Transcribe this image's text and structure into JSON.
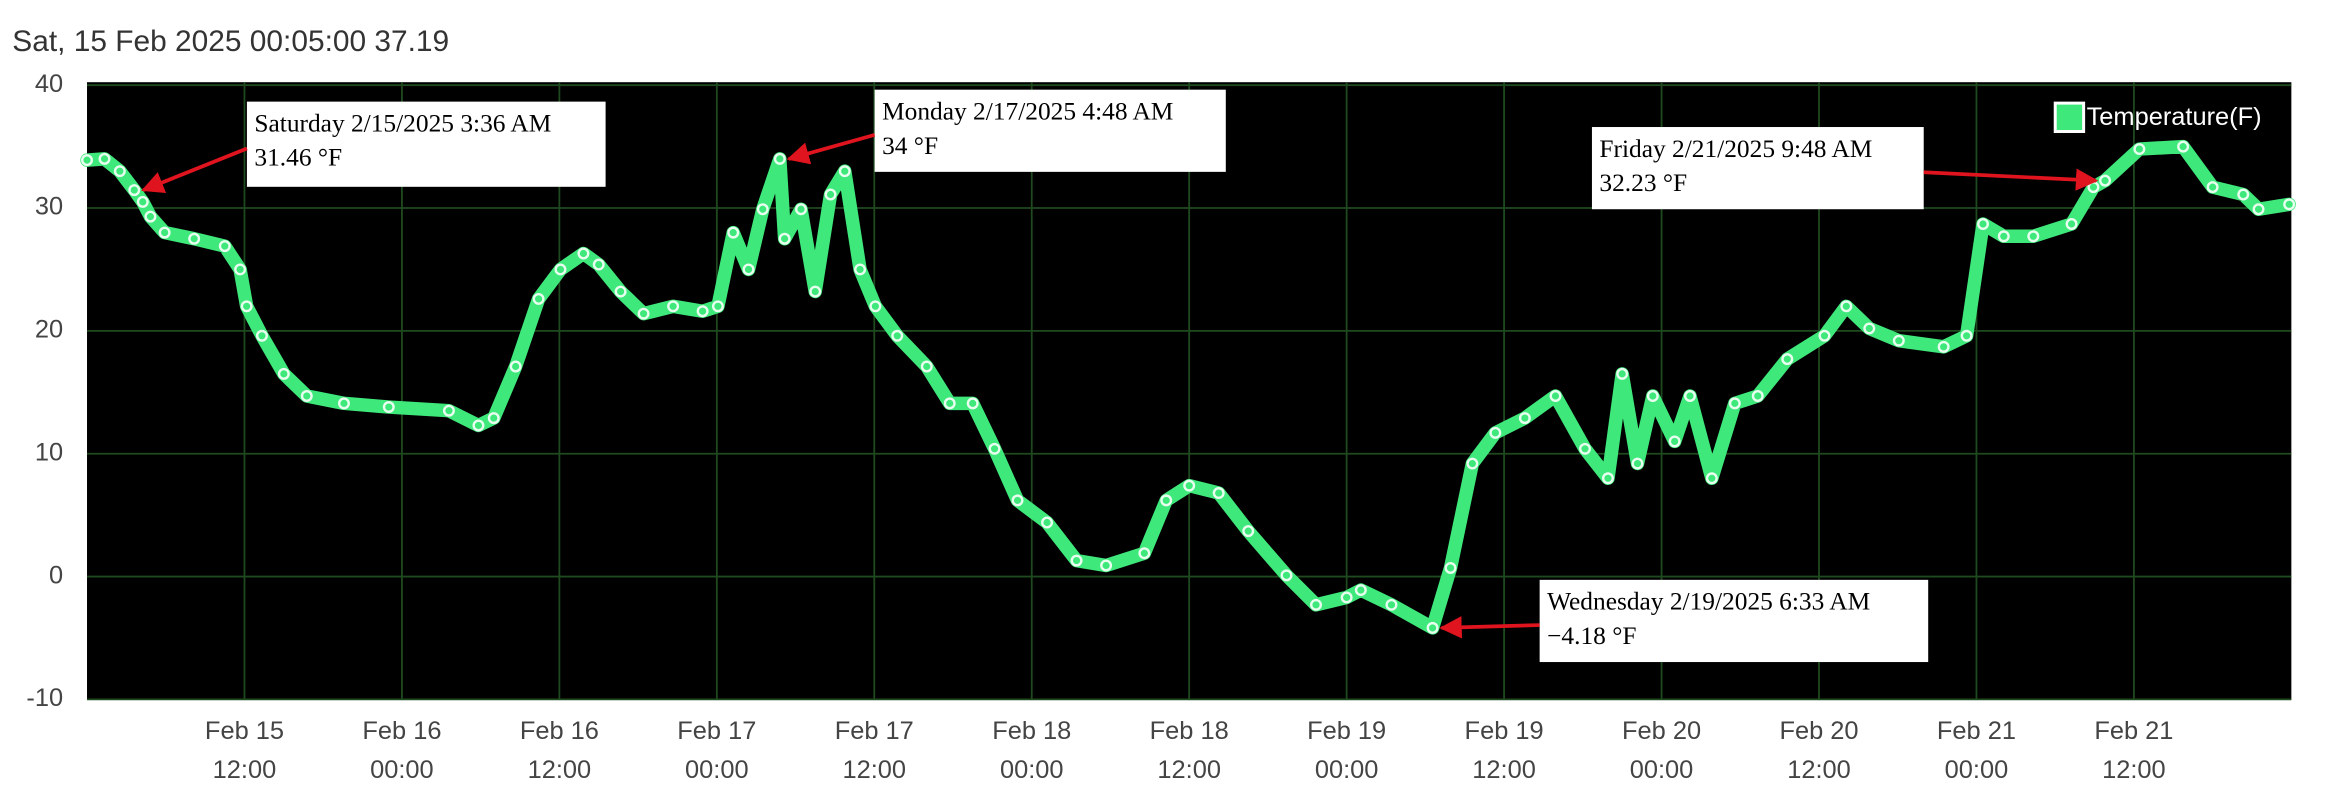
{
  "chart_data": {
    "type": "line",
    "title": "Sat, 15 Feb 2025 00:05:00 37.19",
    "x": [
      "Feb 15 00:00",
      "Feb 15 01:20",
      "Feb 15 02:30",
      "Feb 15 03:36",
      "Feb 15 04:15",
      "Feb 15 04:50",
      "Feb 15 05:55",
      "Feb 15 08:10",
      "Feb 15 10:30",
      "Feb 15 11:40",
      "Feb 15 12:10",
      "Feb 15 13:20",
      "Feb 15 15:00",
      "Feb 15 16:45",
      "Feb 15 19:35",
      "Feb 15 23:00",
      "Feb 16 03:35",
      "Feb 16 05:50",
      "Feb 16 07:00",
      "Feb 16 08:40",
      "Feb 16 10:25",
      "Feb 16 12:05",
      "Feb 16 13:50",
      "Feb 16 15:00",
      "Feb 16 16:40",
      "Feb 16 18:25",
      "Feb 16 20:40",
      "Feb 16 22:55",
      "Feb 17 00:05",
      "Feb 17 01:15",
      "Feb 17 02:25",
      "Feb 17 03:30",
      "Feb 17 04:48",
      "Feb 17 05:10",
      "Feb 17 06:25",
      "Feb 17 07:30",
      "Feb 17 08:40",
      "Feb 17 09:45",
      "Feb 17 10:55",
      "Feb 17 12:05",
      "Feb 17 13:45",
      "Feb 17 16:00",
      "Feb 17 17:45",
      "Feb 17 19:30",
      "Feb 17 21:10",
      "Feb 17 22:55",
      "Feb 18 01:10",
      "Feb 18 03:25",
      "Feb 18 05:40",
      "Feb 18 08:35",
      "Feb 18 10:15",
      "Feb 18 12:00",
      "Feb 18 14:15",
      "Feb 18 16:30",
      "Feb 18 19:25",
      "Feb 18 21:40",
      "Feb 19 00:00",
      "Feb 19 01:05",
      "Feb 19 03:25",
      "Feb 19 06:33",
      "Feb 19 07:55",
      "Feb 19 09:35",
      "Feb 19 11:20",
      "Feb 19 13:35",
      "Feb 19 15:55",
      "Feb 19 18:10",
      "Feb 19 19:55",
      "Feb 19 21:00",
      "Feb 19 22:10",
      "Feb 19 23:20",
      "Feb 20 01:00",
      "Feb 20 02:10",
      "Feb 20 03:50",
      "Feb 20 05:35",
      "Feb 20 07:20",
      "Feb 20 09:35",
      "Feb 20 12:25",
      "Feb 20 14:05",
      "Feb 20 15:50",
      "Feb 20 18:05",
      "Feb 20 21:30",
      "Feb 20 23:15",
      "Feb 21 00:30",
      "Feb 21 02:05",
      "Feb 21 04:20",
      "Feb 21 07:15",
      "Feb 21 08:55",
      "Feb 21 09:48",
      "Feb 21 12:25",
      "Feb 21 15:45",
      "Feb 21 18:00",
      "Feb 21 20:20",
      "Feb 21 21:30",
      "Feb 21 23:50"
    ],
    "series": [
      {
        "name": "Temperature(F)",
        "color": "#3ee87a",
        "values": [
          33.9,
          34,
          33,
          31.46,
          30.5,
          29.3,
          28,
          27.5,
          26.9,
          25,
          22,
          19.6,
          16.5,
          14.7,
          14.1,
          13.8,
          13.5,
          12.3,
          12.9,
          17.1,
          22.6,
          25,
          26.3,
          25.4,
          23.2,
          21.4,
          22,
          21.6,
          22,
          28,
          25,
          29.9,
          34,
          27.5,
          29.9,
          23.2,
          31.1,
          33,
          25,
          22,
          19.6,
          17.1,
          14.1,
          14.1,
          10.4,
          6.2,
          4.4,
          1.3,
          0.9,
          1.9,
          6.2,
          7.4,
          6.8,
          3.7,
          0.1,
          -2.3,
          -1.7,
          -1.1,
          -2.3,
          -4.18,
          0.7,
          9.2,
          11.7,
          12.9,
          14.7,
          10.4,
          8,
          16.5,
          9.2,
          14.7,
          11,
          14.7,
          8,
          14.1,
          14.7,
          17.7,
          19.6,
          22,
          20.2,
          19.2,
          18.7,
          19.6,
          28.7,
          27.7,
          27.7,
          28.7,
          31.7,
          32.23,
          34.8,
          35,
          31.7,
          31.1,
          29.9,
          30.3
        ]
      }
    ],
    "xlim": [
      "Feb 15 00:00",
      "Feb 22 00:00"
    ],
    "xticks": [
      {
        "value": "Feb 15 12:00",
        "label": [
          "Feb 15",
          "12:00"
        ]
      },
      {
        "value": "Feb 16 00:00",
        "label": [
          "Feb 16",
          "00:00"
        ]
      },
      {
        "value": "Feb 16 12:00",
        "label": [
          "Feb 16",
          "12:00"
        ]
      },
      {
        "value": "Feb 17 00:00",
        "label": [
          "Feb 17",
          "00:00"
        ]
      },
      {
        "value": "Feb 17 12:00",
        "label": [
          "Feb 17",
          "12:00"
        ]
      },
      {
        "value": "Feb 18 00:00",
        "label": [
          "Feb 18",
          "00:00"
        ]
      },
      {
        "value": "Feb 18 12:00",
        "label": [
          "Feb 18",
          "12:00"
        ]
      },
      {
        "value": "Feb 19 00:00",
        "label": [
          "Feb 19",
          "00:00"
        ]
      },
      {
        "value": "Feb 19 12:00",
        "label": [
          "Feb 19",
          "12:00"
        ]
      },
      {
        "value": "Feb 20 00:00",
        "label": [
          "Feb 20",
          "00:00"
        ]
      },
      {
        "value": "Feb 20 12:00",
        "label": [
          "Feb 20",
          "12:00"
        ]
      },
      {
        "value": "Feb 21 00:00",
        "label": [
          "Feb 21",
          "00:00"
        ]
      },
      {
        "value": "Feb 21 12:00",
        "label": [
          "Feb 21",
          "12:00"
        ]
      }
    ],
    "ylim": [
      -10,
      40
    ],
    "yticks": [
      -10,
      0,
      10,
      20,
      30,
      40
    ],
    "grid": true,
    "legend": "top-right",
    "annotations": [
      {
        "text": "Saturday 2/15/2025 3:36 AM",
        "value_text": "31.46 °F",
        "x": "Feb 15 03:36",
        "y": 31.46
      },
      {
        "text": "Monday 2/17/2025 4:48 AM",
        "value_text": "34 °F",
        "x": "Feb 17 04:48",
        "y": 34
      },
      {
        "text": "Wednesday 2/19/2025 6:33 AM",
        "value_text": "−4.18 °F",
        "x": "Feb 19 06:33",
        "y": -4.18
      },
      {
        "text": "Friday 2/21/2025 9:48 AM",
        "value_text": "32.23 °F",
        "x": "Feb 21 09:48",
        "y": 32.23
      }
    ]
  }
}
